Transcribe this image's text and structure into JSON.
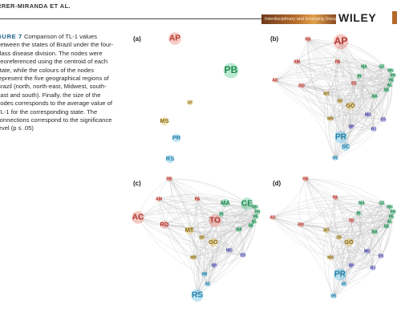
{
  "header": {
    "author": "RRER-MIRANDA ET AL.",
    "banner_text": "Interdisciplinary and Emerging Disciplines",
    "publisher": "WILEY"
  },
  "caption": {
    "figure_label": "GURE 7",
    "text": "Comparison of TL-1 values between the states of Brazil under the four-class disease division. The nodes were georeferenced using the centroid of each state, while the colours of the nodes represent the five geographical regions of Brazil (north, north-east, Midwest, south-east and south). Finally, the size of the nodes corresponds to the average value of TL-1 for the corresponding state. The connections correspond to the significance level (p ≤ .05)"
  },
  "region_colors": {
    "north": "#e8685c",
    "northeast": "#3fbf7a",
    "midwest": "#e0b23a",
    "southeast": "#7c79d8",
    "south": "#4fb6e3"
  },
  "panels": [
    {
      "label": "(a)",
      "nodes": [
        {
          "id": "AP",
          "region": "north",
          "size": 3
        },
        {
          "id": "PB",
          "region": "northeast",
          "size": 4
        },
        {
          "id": "DF",
          "region": "midwest",
          "size": 1
        },
        {
          "id": "MS",
          "region": "midwest",
          "size": 2
        },
        {
          "id": "PR",
          "region": "south",
          "size": 2
        },
        {
          "id": "RS",
          "region": "south",
          "size": 2
        }
      ]
    },
    {
      "label": "(b)",
      "nodes": [
        {
          "id": "RR",
          "region": "north",
          "size": 1
        },
        {
          "id": "AP",
          "region": "north",
          "size": 4
        },
        {
          "id": "AM",
          "region": "north",
          "size": 1
        },
        {
          "id": "PA",
          "region": "north",
          "size": 1
        },
        {
          "id": "MA",
          "region": "northeast",
          "size": 1
        },
        {
          "id": "CE",
          "region": "northeast",
          "size": 1
        },
        {
          "id": "RN",
          "region": "northeast",
          "size": 1
        },
        {
          "id": "PB",
          "region": "northeast",
          "size": 1
        },
        {
          "id": "PE",
          "region": "northeast",
          "size": 1
        },
        {
          "id": "AL",
          "region": "northeast",
          "size": 1
        },
        {
          "id": "SE",
          "region": "northeast",
          "size": 1
        },
        {
          "id": "PI",
          "region": "northeast",
          "size": 1
        },
        {
          "id": "AC",
          "region": "north",
          "size": 1
        },
        {
          "id": "RO",
          "region": "north",
          "size": 1
        },
        {
          "id": "TO",
          "region": "north",
          "size": 1
        },
        {
          "id": "MT",
          "region": "midwest",
          "size": 1
        },
        {
          "id": "BA",
          "region": "northeast",
          "size": 1
        },
        {
          "id": "GO",
          "region": "midwest",
          "size": 2
        },
        {
          "id": "DF",
          "region": "midwest",
          "size": 1
        },
        {
          "id": "MG",
          "region": "southeast",
          "size": 1
        },
        {
          "id": "ES",
          "region": "southeast",
          "size": 1
        },
        {
          "id": "MS",
          "region": "midwest",
          "size": 1
        },
        {
          "id": "SP",
          "region": "southeast",
          "size": 1
        },
        {
          "id": "RJ",
          "region": "southeast",
          "size": 1
        },
        {
          "id": "PR",
          "region": "south",
          "size": 3
        },
        {
          "id": "SC",
          "region": "south",
          "size": 2
        },
        {
          "id": "RS",
          "region": "south",
          "size": 1
        }
      ]
    },
    {
      "label": "(c)",
      "nodes": [
        {
          "id": "RR",
          "region": "north",
          "size": 1
        },
        {
          "id": "AM",
          "region": "north",
          "size": 1
        },
        {
          "id": "PA",
          "region": "north",
          "size": 1
        },
        {
          "id": "MA",
          "region": "northeast",
          "size": 2
        },
        {
          "id": "CE",
          "region": "northeast",
          "size": 3
        },
        {
          "id": "RN",
          "region": "northeast",
          "size": 1
        },
        {
          "id": "PB",
          "region": "northeast",
          "size": 1
        },
        {
          "id": "PE",
          "region": "northeast",
          "size": 1
        },
        {
          "id": "AL",
          "region": "northeast",
          "size": 1
        },
        {
          "id": "SE",
          "region": "northeast",
          "size": 1
        },
        {
          "id": "PI",
          "region": "northeast",
          "size": 1
        },
        {
          "id": "AC",
          "region": "north",
          "size": 3
        },
        {
          "id": "RO",
          "region": "north",
          "size": 2
        },
        {
          "id": "TO",
          "region": "north",
          "size": 3
        },
        {
          "id": "MT",
          "region": "midwest",
          "size": 2
        },
        {
          "id": "BA",
          "region": "northeast",
          "size": 1
        },
        {
          "id": "GO",
          "region": "midwest",
          "size": 2
        },
        {
          "id": "DF",
          "region": "midwest",
          "size": 1
        },
        {
          "id": "MG",
          "region": "southeast",
          "size": 1
        },
        {
          "id": "ES",
          "region": "southeast",
          "size": 1
        },
        {
          "id": "MS",
          "region": "midwest",
          "size": 1
        },
        {
          "id": "SP",
          "region": "southeast",
          "size": 1
        },
        {
          "id": "PR",
          "region": "south",
          "size": 1
        },
        {
          "id": "SC",
          "region": "south",
          "size": 1
        },
        {
          "id": "RS",
          "region": "south",
          "size": 3
        }
      ]
    },
    {
      "label": "(d)",
      "nodes": [
        {
          "id": "RR",
          "region": "north",
          "size": 1
        },
        {
          "id": "PA",
          "region": "north",
          "size": 1
        },
        {
          "id": "MA",
          "region": "northeast",
          "size": 1
        },
        {
          "id": "CE",
          "region": "northeast",
          "size": 1
        },
        {
          "id": "RN",
          "region": "northeast",
          "size": 1
        },
        {
          "id": "PB",
          "region": "northeast",
          "size": 1
        },
        {
          "id": "PE",
          "region": "northeast",
          "size": 1
        },
        {
          "id": "AL",
          "region": "northeast",
          "size": 1
        },
        {
          "id": "SE",
          "region": "northeast",
          "size": 1
        },
        {
          "id": "PI",
          "region": "northeast",
          "size": 1
        },
        {
          "id": "AC",
          "region": "north",
          "size": 1
        },
        {
          "id": "RO",
          "region": "north",
          "size": 1
        },
        {
          "id": "TO",
          "region": "north",
          "size": 1
        },
        {
          "id": "MT",
          "region": "midwest",
          "size": 1
        },
        {
          "id": "BA",
          "region": "northeast",
          "size": 1
        },
        {
          "id": "GO",
          "region": "midwest",
          "size": 2
        },
        {
          "id": "DF",
          "region": "midwest",
          "size": 1
        },
        {
          "id": "MG",
          "region": "southeast",
          "size": 1
        },
        {
          "id": "ES",
          "region": "southeast",
          "size": 1
        },
        {
          "id": "MS",
          "region": "midwest",
          "size": 1
        },
        {
          "id": "SP",
          "region": "southeast",
          "size": 1
        },
        {
          "id": "RJ",
          "region": "southeast",
          "size": 1
        },
        {
          "id": "PR",
          "region": "south",
          "size": 3
        },
        {
          "id": "SC",
          "region": "south",
          "size": 1
        },
        {
          "id": "RS",
          "region": "south",
          "size": 1
        }
      ]
    }
  ]
}
